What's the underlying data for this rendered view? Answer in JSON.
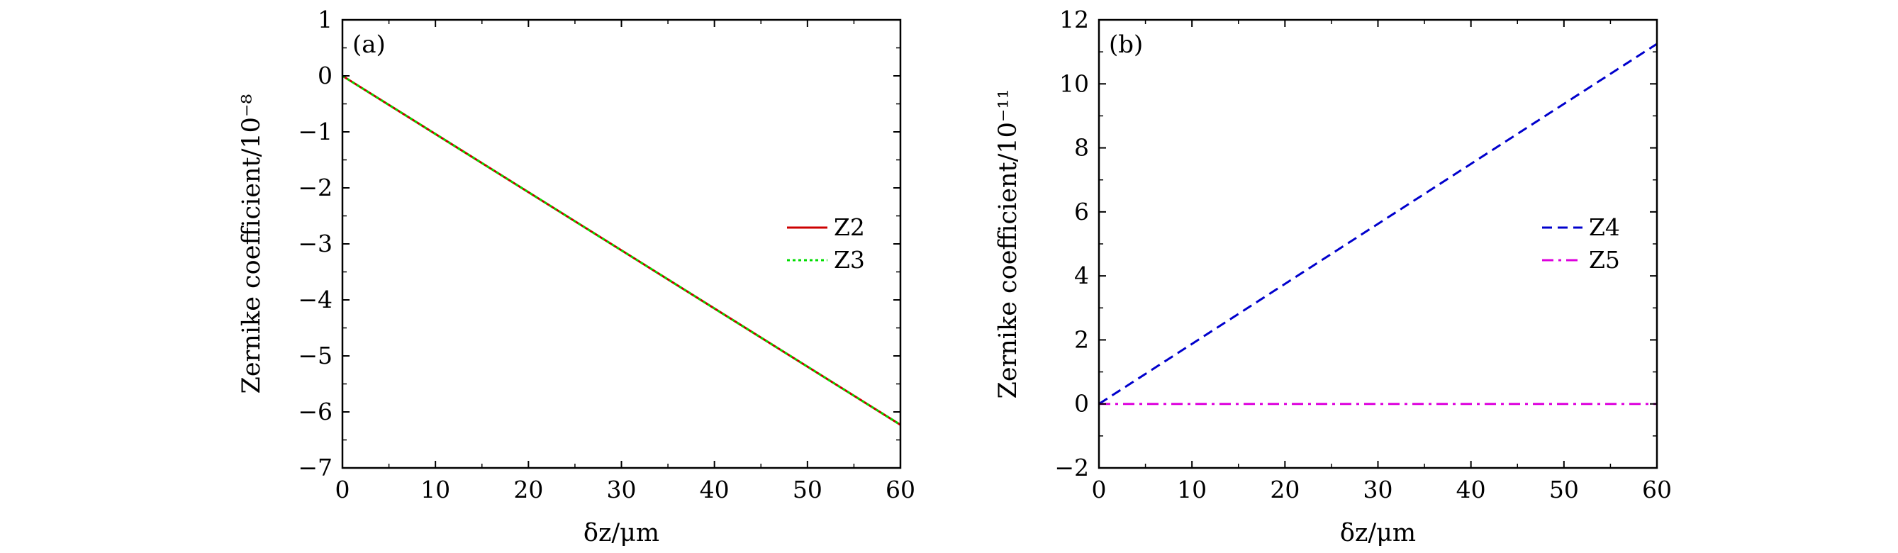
{
  "chart_data": [
    {
      "type": "line",
      "panel_label": "(a)",
      "xlabel": "δz/μm",
      "ylabel": "Zernike coefficient/10⁻⁸",
      "xlim": [
        0,
        60
      ],
      "ylim": [
        -7,
        1
      ],
      "xticks": [
        0,
        10,
        20,
        30,
        40,
        50,
        60
      ],
      "xtick_labels": [
        "0",
        "10",
        "20",
        "30",
        "40",
        "50",
        "60"
      ],
      "yticks": [
        1,
        0,
        -1,
        -2,
        -3,
        -4,
        -5,
        -6,
        -7
      ],
      "ytick_labels": [
        "1",
        "0",
        "−1",
        "−2",
        "−3",
        "−4",
        "−5",
        "−6",
        "−7"
      ],
      "grid": false,
      "legend_position": "right",
      "series": [
        {
          "name": "Z2",
          "color": "#cc0000",
          "style": "solid",
          "x": [
            0,
            60
          ],
          "y": [
            0,
            -6.23
          ]
        },
        {
          "name": "Z3",
          "color": "#00dd00",
          "style": "dotted",
          "x": [
            0,
            60
          ],
          "y": [
            0,
            -6.23
          ]
        }
      ]
    },
    {
      "type": "line",
      "panel_label": "(b)",
      "xlabel": "δz/μm",
      "ylabel": "Zernike coefficient/10⁻¹¹",
      "xlim": [
        0,
        60
      ],
      "ylim": [
        -2,
        12
      ],
      "xticks": [
        0,
        10,
        20,
        30,
        40,
        50,
        60
      ],
      "xtick_labels": [
        "0",
        "10",
        "20",
        "30",
        "40",
        "50",
        "60"
      ],
      "yticks": [
        12,
        10,
        8,
        6,
        4,
        2,
        0,
        -2
      ],
      "ytick_labels": [
        "12",
        "10",
        "8",
        "6",
        "4",
        "2",
        "0",
        "−2"
      ],
      "grid": false,
      "legend_position": "right",
      "series": [
        {
          "name": "Z4",
          "color": "#0000cc",
          "style": "dashed",
          "x": [
            0,
            60
          ],
          "y": [
            0,
            11.25
          ]
        },
        {
          "name": "Z5",
          "color": "#dd00dd",
          "style": "dashdot",
          "x": [
            0,
            60
          ],
          "y": [
            0,
            0
          ]
        }
      ]
    }
  ]
}
